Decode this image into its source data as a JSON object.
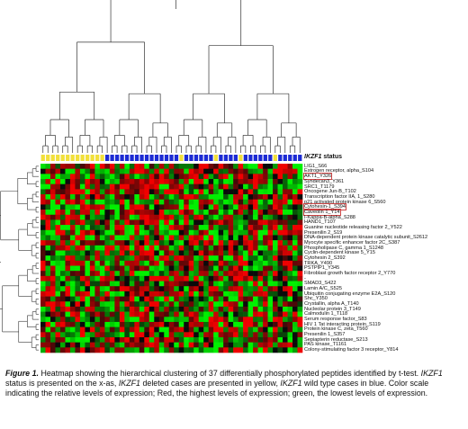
{
  "chart_data": {
    "type": "heatmap",
    "status_label_gene": "IKZF1",
    "status_label_rest": " status",
    "colors": {
      "status_deleted": "#f2e03a",
      "status_wildtype": "#1c2bd4",
      "high": "#e01010",
      "low": "#10d010",
      "mid": "#000000"
    },
    "column_status": [
      "deleted",
      "deleted",
      "deleted",
      "deleted",
      "deleted",
      "deleted",
      "deleted",
      "deleted",
      "deleted",
      "deleted",
      "deleted",
      "deleted",
      "deleted",
      "wildtype",
      "wildtype",
      "wildtype",
      "wildtype",
      "wildtype",
      "wildtype",
      "wildtype",
      "wildtype",
      "wildtype",
      "wildtype",
      "wildtype",
      "wildtype",
      "wildtype",
      "wildtype",
      "wildtype",
      "deleted",
      "wildtype",
      "wildtype",
      "wildtype",
      "wildtype",
      "wildtype",
      "wildtype",
      "deleted",
      "wildtype",
      "wildtype",
      "wildtype",
      "wildtype",
      "deleted",
      "wildtype",
      "wildtype",
      "wildtype",
      "wildtype",
      "wildtype",
      "wildtype",
      "deleted",
      "wildtype",
      "wildtype",
      "wildtype",
      "wildtype",
      "wildtype"
    ],
    "rows": [
      {
        "label": "LIG1_S66",
        "boxed": false
      },
      {
        "label": "Estrogen receptor, alpha_S104",
        "boxed": false
      },
      {
        "label": "AKT1_Y326",
        "boxed": true
      },
      {
        "label": "Syndecan3_Y361",
        "boxed": false
      },
      {
        "label": "SRC1_T1179",
        "boxed": false
      },
      {
        "label": "Oncogene Jun-B_T102",
        "boxed": false
      },
      {
        "label": "Transcription factor IIA, 1_S280",
        "boxed": false
      },
      {
        "label": "p21 activated protein kinase 6_S560",
        "boxed": false
      },
      {
        "label": "Cytohesin-1_S394",
        "boxed": true
      },
      {
        "label": "Caveolin 1_Y14",
        "boxed": true
      },
      {
        "label": "I-Kappa-B-alpha_S288",
        "boxed": false
      },
      {
        "label": "HAND1_T107",
        "boxed": false
      },
      {
        "label": "Guanine nucleotide releasing factor 2_Y522",
        "boxed": false
      },
      {
        "label": "Presenilin 2_S19",
        "boxed": false
      },
      {
        "label": "DNA-dependent protein kinase catalytic subunit_S2612",
        "boxed": false
      },
      {
        "label": "Myocyte specific enhancer factor 2C_S387",
        "boxed": false
      },
      {
        "label": "Phospholipase C, gamma 1_S1248",
        "boxed": false
      },
      {
        "label": "Cyclin-dependent kinase 5_Y15",
        "boxed": false
      },
      {
        "label": "Cytohesin 2_S392",
        "boxed": false
      },
      {
        "label": "TRKA_Y490",
        "boxed": false
      },
      {
        "label": "PSTPIP1_Y345",
        "boxed": false
      },
      {
        "label": "Fibroblast growth factor receptor 2_Y770",
        "boxed": false
      },
      {
        "label": "-",
        "boxed": false
      },
      {
        "label": "SMAD3_S422",
        "boxed": false
      },
      {
        "label": "Lamin A/C_S525",
        "boxed": false
      },
      {
        "label": "Ubiquitin conjugating enzyme E2A_S120",
        "boxed": false
      },
      {
        "label": "Shc_Y350",
        "boxed": false
      },
      {
        "label": "Crystallin, alpha A_T140",
        "boxed": false
      },
      {
        "label": "Nucleolar protein 3_T149",
        "boxed": false
      },
      {
        "label": "Calmodulin 1_T118",
        "boxed": false
      },
      {
        "label": "Serum response factor_S83",
        "boxed": false
      },
      {
        "label": "HIV 1 Tat interacting protein_S119",
        "boxed": false
      },
      {
        "label": "Protein kinase C, zeta_T560",
        "boxed": false
      },
      {
        "label": "Presenilin 1_S357",
        "boxed": false
      },
      {
        "label": "Sepiapterin reductase_S213",
        "boxed": false
      },
      {
        "label": "PAS kinase_T1161",
        "boxed": false
      },
      {
        "label": "Colony-stimulating factor 3 receptor_Y814",
        "boxed": false
      }
    ]
  },
  "caption": {
    "fig": "Figure 1.",
    "t1": " Heatmap showing the hierarchical clustering of 37 differentially phosphorylated peptides identified by t-test. ",
    "g1": "IKZF1",
    "t2": " status is presented on the x-as, ",
    "g2": "IKZF1",
    "t3": " deleted cases are presented in yellow, ",
    "g3": "IKZF1",
    "t4": " wild type cases in blue. Color scale indicating the relative levels of expression; Red, the highest levels of expression; green, the lowest levels of expression."
  }
}
